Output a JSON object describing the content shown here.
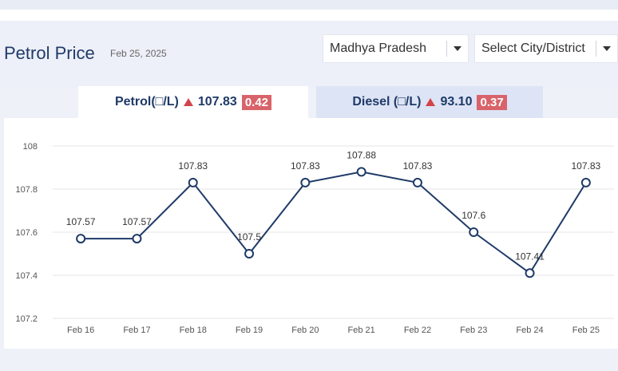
{
  "header": {
    "title": "Petrol Price",
    "date": "Feb 25, 2025"
  },
  "filters": {
    "state": "Madhya Pradesh",
    "city": "Select City/District"
  },
  "tabs": {
    "petrol": {
      "label": "Petrol(□/L)",
      "price": "107.83",
      "change": "0.42"
    },
    "diesel": {
      "label": "Diesel (□/L)",
      "price": "93.10",
      "change": "0.37"
    }
  },
  "colors": {
    "line": "#1f3a68",
    "badge": "#d9636a",
    "up_arrow": "#d3444a",
    "active_tab": "#ffffff",
    "inactive_tab": "#dde4f5"
  },
  "chart_data": {
    "type": "line",
    "categories": [
      "Feb 16",
      "Feb 17",
      "Feb 18",
      "Feb 19",
      "Feb 20",
      "Feb 21",
      "Feb 22",
      "Feb 23",
      "Feb 24",
      "Feb 25"
    ],
    "series": [
      {
        "values": [
          107.57,
          107.57,
          107.83,
          107.5,
          107.83,
          107.88,
          107.83,
          107.6,
          107.41,
          107.83
        ]
      }
    ],
    "data_labels": [
      "107.57",
      "107.57",
      "107.83",
      "107.5",
      "107.83",
      "107.88",
      "107.83",
      "107.6",
      "107.41",
      "107.83"
    ],
    "y_ticks": [
      "107.2",
      "107.4",
      "107.6",
      "107.8",
      "108"
    ],
    "ylim": [
      107.2,
      108
    ],
    "grid": true,
    "title": "",
    "xlabel": "",
    "ylabel": ""
  }
}
